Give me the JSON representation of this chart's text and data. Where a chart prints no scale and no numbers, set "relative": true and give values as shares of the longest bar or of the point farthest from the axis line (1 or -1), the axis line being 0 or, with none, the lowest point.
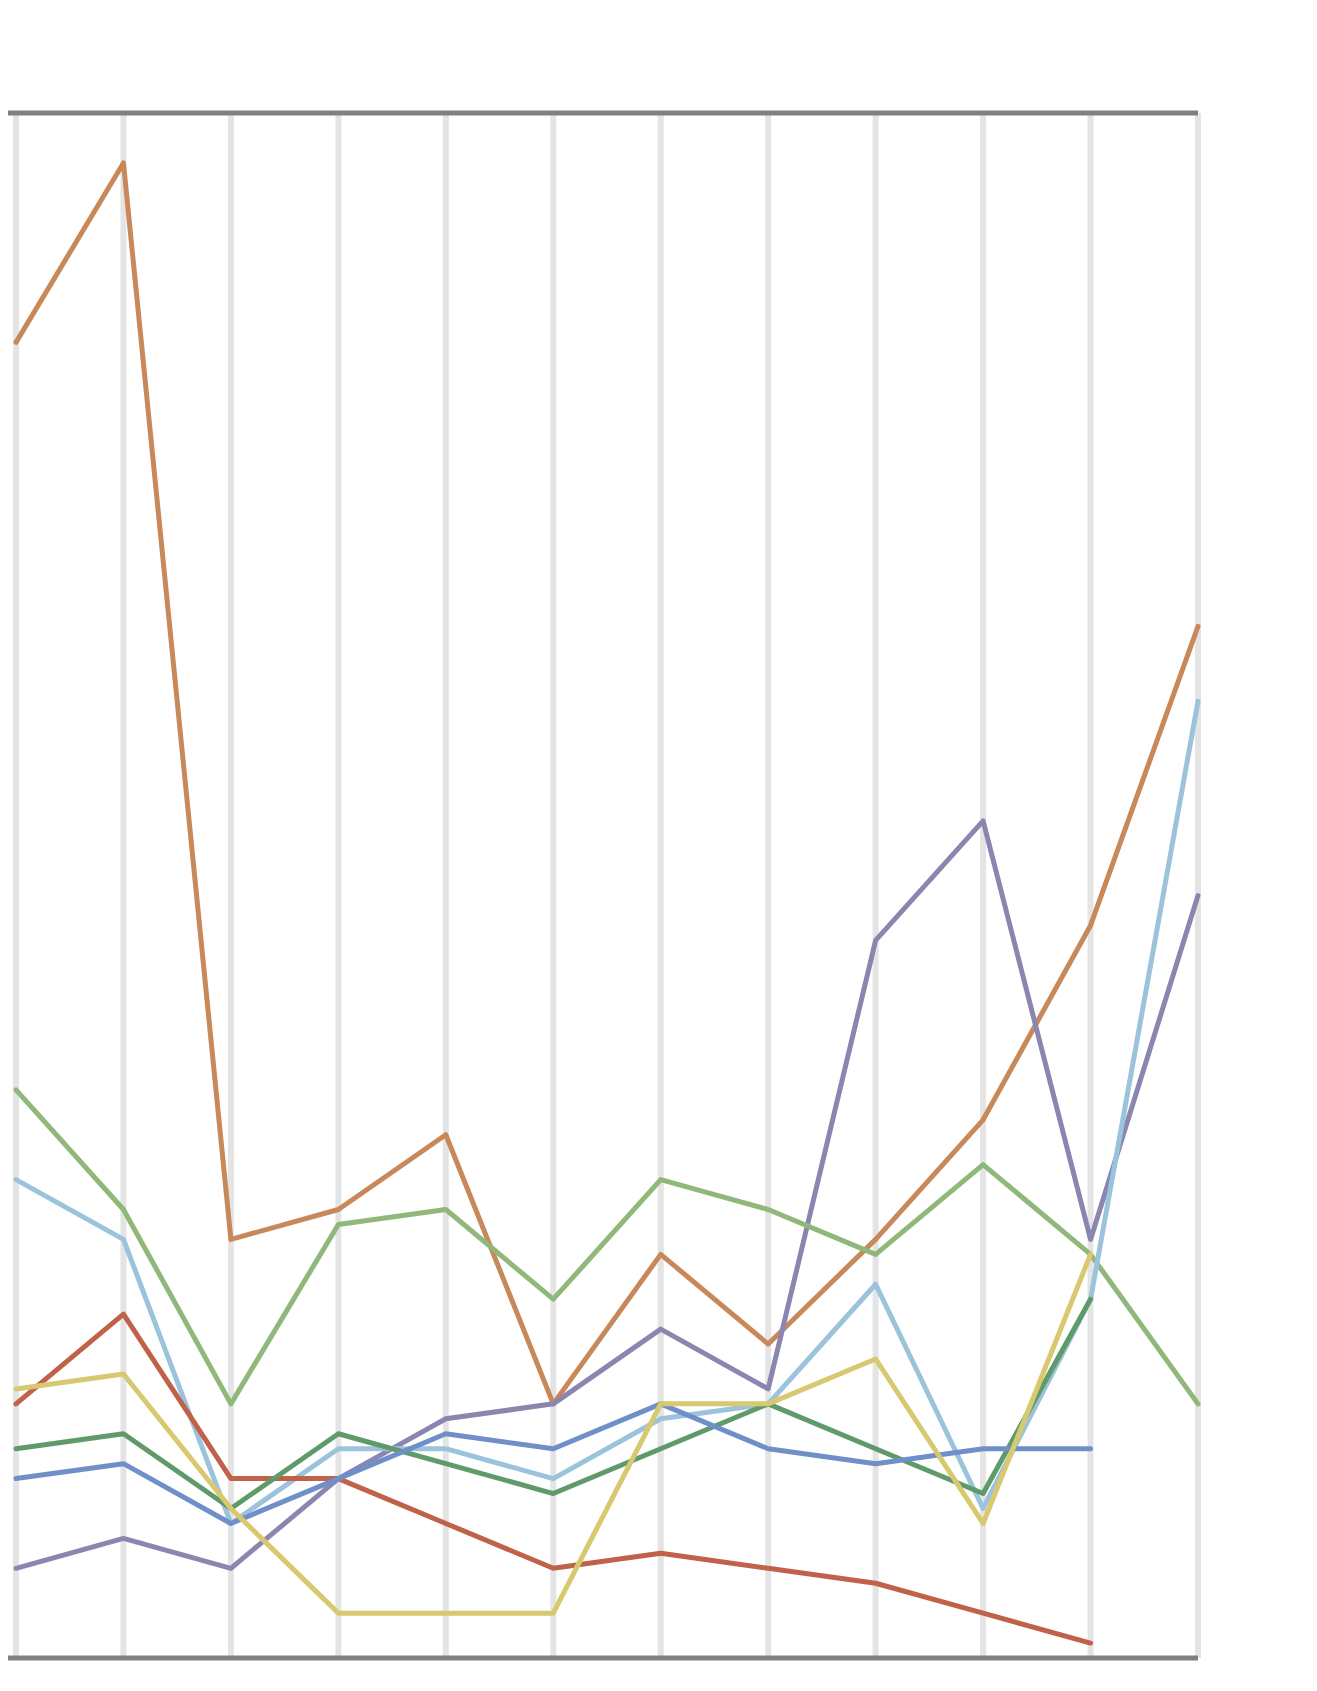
{
  "chart_data": {
    "type": "line",
    "relative": true,
    "grid": "x",
    "categories": [
      null,
      null,
      null,
      null,
      null,
      null,
      null,
      null,
      null,
      null,
      null,
      null
    ],
    "series": [
      {
        "color": "#c8895a",
        "values": [
          0.88,
          1,
          0.28,
          0.3,
          0.35,
          0.17,
          0.27,
          0.21,
          0.28,
          0.36,
          0.49,
          0.69
        ]
      },
      {
        "color": "#8a86b0",
        "values": [
          0.06,
          0.08,
          0.06,
          0.12,
          0.16,
          0.17,
          0.22,
          0.18,
          0.48,
          0.56,
          0.28,
          0.51
        ]
      },
      {
        "color": "#8fb87a",
        "values": [
          0.38,
          0.3,
          0.17,
          0.29,
          0.3,
          0.24,
          0.32,
          0.3,
          0.27,
          0.33,
          0.27,
          0.17
        ]
      },
      {
        "color": "#9cc3dc",
        "values": [
          0.32,
          0.28,
          0.09,
          0.14,
          0.14,
          0.12,
          0.16,
          0.17,
          0.25,
          0.1,
          0.24,
          0.64
        ]
      },
      {
        "color": "#c0614a",
        "values": [
          0.17,
          0.23,
          0.12,
          0.12,
          0.09,
          0.06,
          0.07,
          0.06,
          0.05,
          0.03,
          0.01,
          null
        ]
      },
      {
        "color": "#5f9a6a",
        "values": [
          0.14,
          0.15,
          0.1,
          0.15,
          0.13,
          0.11,
          0.14,
          0.17,
          0.14,
          0.11,
          0.24,
          null
        ]
      },
      {
        "color": "#6f8fc8",
        "values": [
          0.12,
          0.13,
          0.09,
          0.12,
          0.15,
          0.14,
          0.17,
          0.14,
          0.13,
          0.14,
          0.14,
          null
        ]
      },
      {
        "color": "#d8c870",
        "values": [
          0.18,
          0.19,
          0.1,
          0.03,
          0.03,
          0.03,
          0.17,
          0.17,
          0.2,
          0.09,
          0.27,
          null
        ]
      }
    ]
  }
}
